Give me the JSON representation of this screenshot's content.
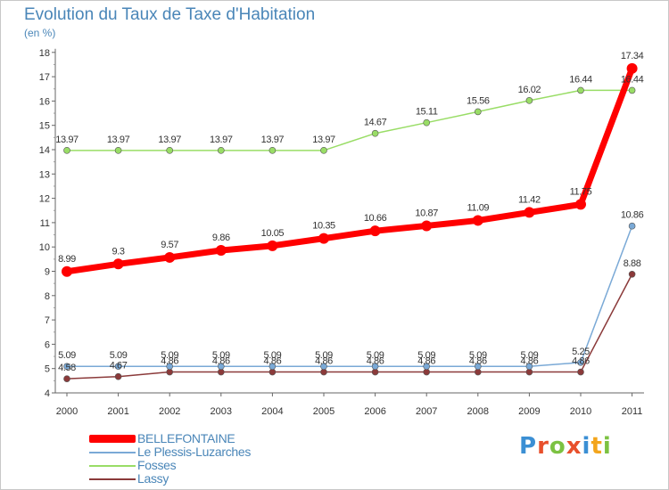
{
  "title": "Evolution du Taux de Taxe d'Habitation",
  "subtitle": "(en %)",
  "logo": {
    "letters": [
      "P",
      "r",
      "o",
      "x",
      "i",
      "t",
      "i"
    ],
    "colors": [
      "#3b8fd4",
      "#e8502c",
      "#7cc242",
      "#e8502c",
      "#3b8fd4",
      "#f3a51c",
      "#7cc242"
    ]
  },
  "chart_data": {
    "type": "line",
    "x": [
      "2000",
      "2001",
      "2002",
      "2003",
      "2004",
      "2005",
      "2006",
      "2007",
      "2008",
      "2009",
      "2010",
      "2011"
    ],
    "ylim": [
      4,
      18
    ],
    "yticks": [
      4,
      5,
      6,
      7,
      8,
      9,
      10,
      11,
      12,
      13,
      14,
      15,
      16,
      17,
      18
    ],
    "grid": false,
    "legend_position": "bottom-left",
    "series": [
      {
        "name": "BELLEFONTAINE",
        "color": "#ff0000",
        "values": [
          8.99,
          9.3,
          9.57,
          9.86,
          10.05,
          10.35,
          10.66,
          10.87,
          11.09,
          11.42,
          11.75,
          17.34
        ],
        "labels": [
          "8.99",
          "9.3",
          "9.57",
          "9.86",
          "10.05",
          "10.35",
          "10.66",
          "10.87",
          "11.09",
          "11.42",
          "11.75",
          "17.34"
        ]
      },
      {
        "name": "Le Plessis-Luzarches",
        "color": "#7aa9d6",
        "values": [
          5.09,
          5.09,
          5.09,
          5.09,
          5.09,
          5.09,
          5.09,
          5.09,
          5.09,
          5.09,
          5.25,
          10.86
        ],
        "labels": [
          "5.09",
          "5.09",
          "5.09",
          "5.09",
          "5.09",
          "5.09",
          "5.09",
          "5.09",
          "5.09",
          "5.09",
          "5.25",
          "10.86"
        ]
      },
      {
        "name": "Fosses",
        "color": "#99dd66",
        "values": [
          13.97,
          13.97,
          13.97,
          13.97,
          13.97,
          13.97,
          14.67,
          15.11,
          15.56,
          16.02,
          16.44,
          16.44
        ],
        "labels": [
          "13.97",
          "13.97",
          "13.97",
          "13.97",
          "13.97",
          "13.97",
          "14.67",
          "15.11",
          "15.56",
          "16.02",
          "16.44",
          "16.44"
        ]
      },
      {
        "name": "Lassy",
        "color": "#8b3a3a",
        "values": [
          4.58,
          4.67,
          4.86,
          4.86,
          4.86,
          4.86,
          4.86,
          4.86,
          4.86,
          4.86,
          4.86,
          8.88
        ],
        "labels": [
          "4.58",
          "4.67",
          "4.86",
          "4.86",
          "4.86",
          "4.86",
          "4.86",
          "4.86",
          "4.86",
          "4.86",
          "4.86",
          "8.88"
        ]
      }
    ]
  }
}
